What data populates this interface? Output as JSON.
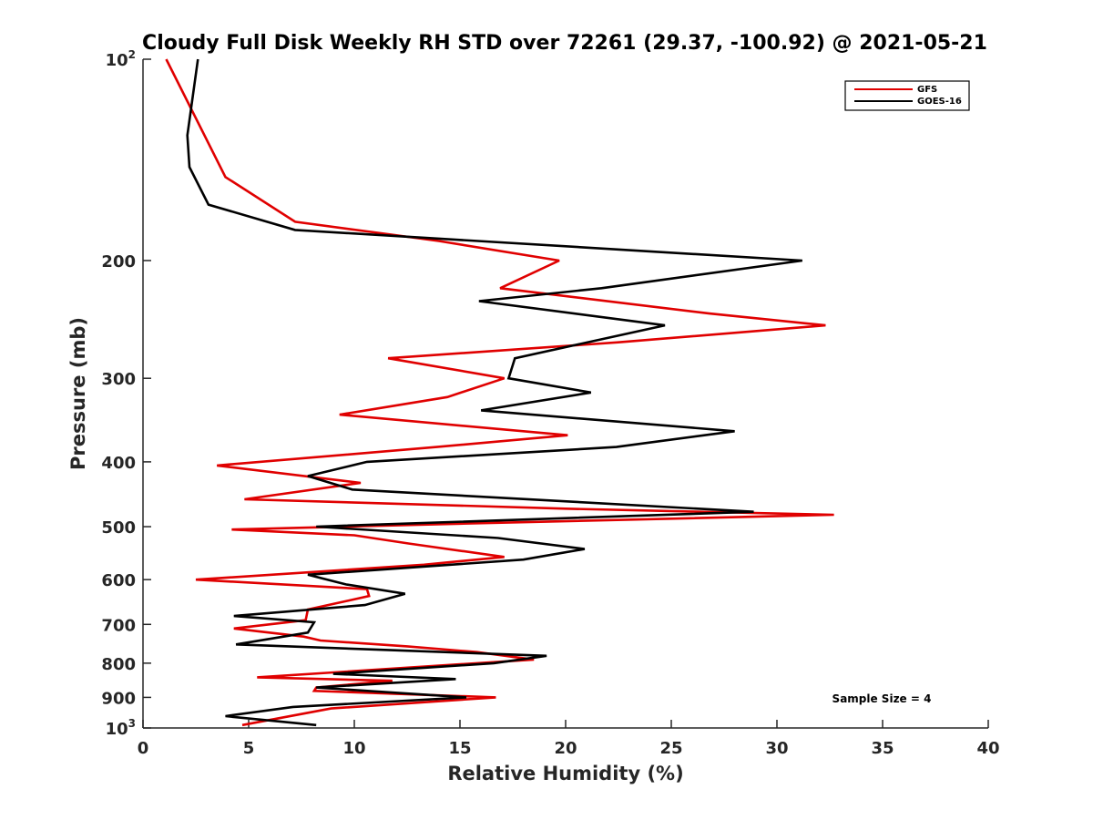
{
  "chart_data": {
    "type": "line",
    "title": "Cloudy Full Disk Weekly RH STD over 72261 (29.37, -100.92) @ 2021-05-21",
    "xlabel": "Relative Humidity (%)",
    "ylabel": "Pressure (mb)",
    "xlim": [
      0,
      40
    ],
    "ylim": [
      100,
      1000
    ],
    "y_scale": "log",
    "y_reversed": true,
    "grid": false,
    "legend_position": "top-right",
    "x_ticks": [
      "0",
      "5",
      "10",
      "15",
      "20",
      "25",
      "30",
      "35",
      "40"
    ],
    "y_ticks": [
      {
        "value": 100,
        "base": "10",
        "exp": "2"
      },
      {
        "value": 200,
        "label": "200"
      },
      {
        "value": 300,
        "label": "300"
      },
      {
        "value": 400,
        "label": "400"
      },
      {
        "value": 500,
        "label": "500"
      },
      {
        "value": 600,
        "label": "600"
      },
      {
        "value": 700,
        "label": "700"
      },
      {
        "value": 800,
        "label": "800"
      },
      {
        "value": 900,
        "label": "900"
      },
      {
        "value": 1000,
        "base": "10",
        "exp": "3"
      }
    ],
    "annotation": "Sample Size = 4",
    "series": [
      {
        "name": "GFS",
        "color": "#e00000",
        "points": [
          [
            1.1,
            100
          ],
          [
            3.9,
            150
          ],
          [
            7.2,
            175
          ],
          [
            14.0,
            187
          ],
          [
            19.7,
            200
          ],
          [
            16.9,
            220
          ],
          [
            26.8,
            240
          ],
          [
            32.3,
            250
          ],
          [
            22.5,
            265
          ],
          [
            11.6,
            280
          ],
          [
            17.1,
            300
          ],
          [
            14.4,
            320
          ],
          [
            9.3,
            340
          ],
          [
            20.1,
            365
          ],
          [
            13.9,
            380
          ],
          [
            3.5,
            405
          ],
          [
            10.3,
            430
          ],
          [
            4.8,
            455
          ],
          [
            20.0,
            470
          ],
          [
            32.7,
            480
          ],
          [
            15.0,
            495
          ],
          [
            4.2,
            505
          ],
          [
            10.0,
            515
          ],
          [
            12.6,
            530
          ],
          [
            17.1,
            555
          ],
          [
            13.3,
            570
          ],
          [
            2.5,
            600
          ],
          [
            10.6,
            620
          ],
          [
            10.7,
            635
          ],
          [
            7.8,
            665
          ],
          [
            7.7,
            690
          ],
          [
            4.3,
            710
          ],
          [
            7.6,
            730
          ],
          [
            8.4,
            740
          ],
          [
            12.5,
            755
          ],
          [
            15.8,
            770
          ],
          [
            18.5,
            790
          ],
          [
            5.4,
            840
          ],
          [
            11.8,
            850
          ],
          [
            8.2,
            870
          ],
          [
            8.1,
            880
          ],
          [
            16.7,
            900
          ],
          [
            8.9,
            935
          ],
          [
            4.7,
            990
          ]
        ]
      },
      {
        "name": "GOES-16",
        "color": "#000000",
        "points": [
          [
            2.6,
            100
          ],
          [
            2.1,
            130
          ],
          [
            2.2,
            145
          ],
          [
            3.1,
            165
          ],
          [
            7.2,
            180
          ],
          [
            31.2,
            200
          ],
          [
            21.7,
            220
          ],
          [
            15.9,
            230
          ],
          [
            24.7,
            250
          ],
          [
            17.6,
            280
          ],
          [
            17.3,
            300
          ],
          [
            21.2,
            315
          ],
          [
            16.0,
            335
          ],
          [
            28.0,
            360
          ],
          [
            22.4,
            380
          ],
          [
            10.6,
            400
          ],
          [
            7.8,
            420
          ],
          [
            9.9,
            440
          ],
          [
            28.9,
            475
          ],
          [
            8.2,
            500
          ],
          [
            16.8,
            520
          ],
          [
            20.9,
            540
          ],
          [
            18.0,
            560
          ],
          [
            7.8,
            590
          ],
          [
            9.6,
            610
          ],
          [
            12.4,
            630
          ],
          [
            10.5,
            655
          ],
          [
            4.3,
            680
          ],
          [
            8.1,
            695
          ],
          [
            7.8,
            720
          ],
          [
            4.4,
            750
          ],
          [
            19.1,
            780
          ],
          [
            16.6,
            800
          ],
          [
            9.0,
            830
          ],
          [
            14.8,
            845
          ],
          [
            8.2,
            870
          ],
          [
            15.3,
            900
          ],
          [
            7.1,
            930
          ],
          [
            3.9,
            960
          ],
          [
            8.2,
            990
          ]
        ]
      }
    ]
  }
}
